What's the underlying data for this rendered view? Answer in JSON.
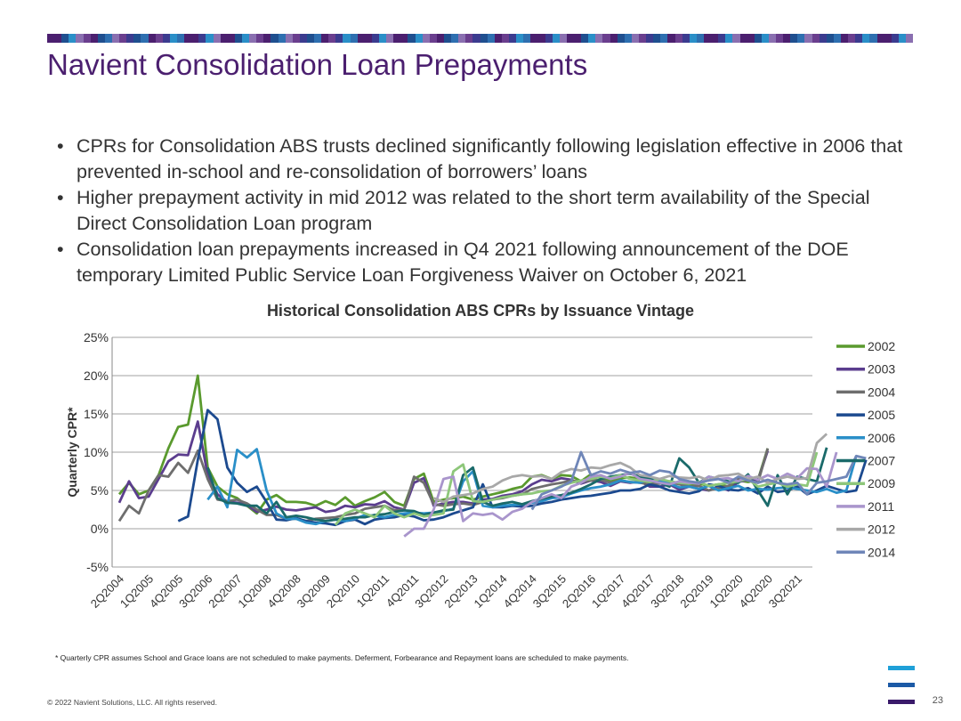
{
  "slide": {
    "title": "Navient Consolidation Loan Prepayments",
    "bullets": [
      "CPRs for Consolidation ABS trusts declined significantly following legislation effective in 2006 that prevented in-school and re-consolidation of borrowers’ loans",
      "Higher prepayment activity in mid 2012 was related to the short term availability of the Special Direct Consolidation Loan program",
      "Consolidation loan prepayments increased in Q4 2021 following announcement of the DOE temporary Limited Public Service Loan Forgiveness Waiver on October 6, 2021"
    ],
    "footnote": "* Quarterly CPR assumes School and Grace loans are not scheduled to make payments. Deferment, Forbearance and Repayment loans are scheduled to make payments.",
    "copyright": "© 2022 Navient Solutions, LLC. All rights reserved.",
    "page_number": "23",
    "top_bar_colors": [
      "#4b1f6f",
      "#3b3b8f",
      "#2e6fb0",
      "#6a3e8e",
      "#1f4f8f",
      "#8a6fb0",
      "#4b1f6f",
      "#2a8fc8"
    ],
    "logo_colors": [
      "#1fa0d8",
      "#1c5aa6",
      "#3a1a6a"
    ]
  },
  "chart_data": {
    "type": "line",
    "title": "Historical Consolidation ABS CPRs by Issuance Vintage",
    "xlabel": "",
    "ylabel": "Quarterly CPR*",
    "ylim": [
      -5,
      25
    ],
    "yticks": [
      -5,
      0,
      5,
      10,
      15,
      20,
      25
    ],
    "ytick_labels": [
      "-5%",
      "0%",
      "5%",
      "10%",
      "15%",
      "20%",
      "25%"
    ],
    "xtick_labels": [
      "2Q2004",
      "1Q2005",
      "4Q2005",
      "3Q2006",
      "2Q2007",
      "1Q2008",
      "4Q2008",
      "3Q2009",
      "2Q2010",
      "1Q2011",
      "4Q2011",
      "3Q2012",
      "2Q2013",
      "1Q2014",
      "4Q2014",
      "3Q2015",
      "2Q2016",
      "1Q2017",
      "4Q2017",
      "3Q2018",
      "2Q2019",
      "1Q2020",
      "4Q2020",
      "3Q2021"
    ],
    "grid": "horizontal",
    "legend": "right",
    "x_start": "2Q2004",
    "x_end": "4Q2021",
    "series": [
      {
        "name": "2002",
        "color": "#5a9a2e",
        "start": "2Q2004",
        "values": [
          4.5,
          6,
          4.5,
          5,
          7,
          10.5,
          13.3,
          13.6,
          20,
          8,
          5.5,
          4.5,
          4,
          3,
          2,
          3.8,
          4.4,
          3.5,
          3.5,
          3.4,
          3,
          3.6,
          3.1,
          4.1,
          3.0,
          3.6,
          4.1,
          4.8,
          3.5,
          3.0,
          6.5,
          7.2,
          3.5,
          3.8,
          4.0,
          4.2,
          3.8,
          4.2,
          4.5,
          4.8,
          5.2,
          5.5,
          6.8,
          7.0,
          6.5,
          7.0,
          6.9,
          6.2,
          7.1,
          6.6,
          6.3,
          6.6,
          6.7,
          6.5,
          6.1,
          6.0,
          6.2,
          5.9,
          5.7,
          5.9,
          5.6,
          5.8,
          5.5,
          6.3,
          6.1,
          6.4,
          10.5
        ]
      },
      {
        "name": "2003",
        "color": "#5b3d8e",
        "start": "2Q2004",
        "values": [
          3.4,
          6.2,
          4,
          4.2,
          6.5,
          8.8,
          9.7,
          9.6,
          14,
          7,
          4.5,
          3.5,
          3.4,
          3.1,
          2.2,
          2.5,
          2.9,
          2.5,
          2.4,
          2.6,
          2.8,
          2.2,
          2.4,
          3.0,
          2.8,
          3.2,
          3.1,
          3.6,
          2.8,
          2.5,
          6.0,
          6.6,
          3.0,
          3.3,
          3.5,
          3.5,
          3.3,
          3.8,
          3.9,
          4.3,
          4.5,
          4.9,
          5.8,
          6.4,
          6.2,
          6.6,
          6.4,
          5.9,
          6.3,
          6.1,
          5.6,
          6.2,
          6.0,
          6.2,
          5.5,
          5.5,
          5.8,
          5.1,
          5.5,
          5.2,
          5.0,
          5.5,
          5.0,
          6.1,
          6.4,
          6.3,
          10.2
        ]
      },
      {
        "name": "2004",
        "color": "#6e6e6e",
        "start": "2Q2004",
        "values": [
          1.0,
          3.0,
          2.0,
          5.0,
          7.0,
          6.8,
          8.6,
          7.3,
          10.2,
          6.5,
          3.8,
          3.6,
          3.8,
          3.3,
          2.5,
          1.8,
          1.8,
          1.3,
          1.3,
          1.0,
          1.3,
          1.4,
          1.5,
          1.8,
          2.0,
          2.6,
          2.8,
          3.0,
          2.4,
          2.5,
          6.8,
          6.0,
          3.2,
          3.0,
          3.2,
          3.3,
          3.1,
          3.5,
          3.8,
          4.0,
          4.3,
          4.5,
          5.2,
          5.5,
          5.8,
          6.0,
          6.3,
          6.1,
          6.3,
          6.4,
          6.0,
          6.3,
          6.1,
          6.0,
          5.8,
          5.9,
          6.1,
          5.8,
          5.5,
          5.6,
          5.0,
          5.3,
          5.6,
          6.5,
          6.3,
          6.0,
          10.5
        ]
      },
      {
        "name": "2005",
        "color": "#1c4a8f",
        "start": "4Q2005",
        "values": [
          1.0,
          1.6,
          9.0,
          15.5,
          14.3,
          8.0,
          6.0,
          4.8,
          5.5,
          3.5,
          1.2,
          1.1,
          1.4,
          1.0,
          0.8,
          0.7,
          0.5,
          1.0,
          1.2,
          0.6,
          1.2,
          1.4,
          1.5,
          1.8,
          1.6,
          1.1,
          1.2,
          1.5,
          2.0,
          2.4,
          2.8,
          5.8,
          2.8,
          2.8,
          3.0,
          2.9,
          3.0,
          3.3,
          3.5,
          3.8,
          4.0,
          4.2,
          4.3,
          4.5,
          4.7,
          5.0,
          5.0,
          5.2,
          5.8,
          5.5,
          5.0,
          4.8,
          4.6,
          4.9,
          5.8,
          5.6,
          5.1,
          5.0,
          5.3,
          4.6,
          5.5,
          4.8,
          5.0,
          5.5,
          4.5,
          5.0,
          5.6,
          5.2,
          4.8,
          5.0,
          9.0
        ]
      },
      {
        "name": "2006",
        "color": "#2a8fc8",
        "start": "3Q2006",
        "values": [
          3.8,
          5.5,
          2.8,
          10.3,
          9.3,
          10.4,
          5.0,
          2.0,
          1.3,
          1.3,
          0.8,
          0.6,
          1.0,
          1.2,
          1.0,
          1.3,
          1.8,
          1.7,
          1.5,
          1.8,
          2.0,
          2.1,
          2.0,
          2.1,
          2.3,
          2.6,
          6.2,
          7.5,
          3.0,
          2.8,
          3.0,
          3.1,
          3.2,
          3.4,
          3.6,
          4.0,
          4.1,
          4.6,
          5.0,
          5.3,
          5.5,
          5.8,
          6.3,
          6.1,
          6.0,
          6.5,
          6.2,
          5.9,
          5.4,
          5.5,
          5.2,
          5.6,
          5.0,
          5.3,
          5.6,
          5.0,
          5.2,
          5.1,
          5.3,
          5.4,
          5.2,
          5.0,
          4.8,
          5.2,
          4.7,
          5.0,
          9.5
        ]
      },
      {
        "name": "2007",
        "color": "#1a6a6a",
        "start": "3Q2006",
        "values": [
          8.0,
          4.0,
          3.4,
          3.3,
          3.0,
          3.0,
          2.0,
          3.5,
          1.5,
          1.7,
          1.5,
          1.2,
          1.0,
          1.2,
          1.3,
          1.5,
          1.5,
          1.8,
          1.9,
          2.2,
          2.4,
          2.3,
          1.8,
          2.1,
          2.4,
          2.5,
          7.0,
          8.0,
          3.5,
          3.0,
          3.3,
          3.5,
          3.2,
          3.6,
          3.9,
          4.2,
          4.4,
          4.7,
          5.2,
          5.8,
          6.5,
          6.8,
          7.0,
          7.2,
          6.8,
          6.5,
          6.0,
          5.5,
          9.2,
          8.0,
          6.0,
          6.8,
          6.5,
          6.2,
          6.0,
          7.1,
          5.0,
          3.0,
          7.0,
          4.5,
          6.8,
          6.5,
          6.2,
          10.6
        ]
      },
      {
        "name": "2009",
        "color": "#8ec77a",
        "start": "4Q2009",
        "values": [
          0.5,
          2.0,
          2.5,
          2.0,
          1.5,
          3.0,
          2.0,
          1.5,
          2.0,
          1.6,
          1.8,
          2.0,
          7.5,
          8.4,
          3.6,
          3.5,
          3.8,
          4.1,
          4.3,
          4.5,
          4.6,
          4.9,
          5.0,
          5.6,
          6.0,
          6.3,
          6.5,
          6.8,
          6.6,
          7.0,
          6.5,
          6.3,
          6.1,
          6.5,
          6.2,
          6.0,
          5.9,
          6.1,
          5.6,
          5.8,
          6.0,
          6.2,
          6.5,
          5.5,
          5.8,
          6.0,
          5.5,
          5.8,
          5.6,
          10.0
        ]
      },
      {
        "name": "2011",
        "color": "#a995cc",
        "start": "3Q2011",
        "values": [
          -1.0,
          0.0,
          0.0,
          2.5,
          6.5,
          6.8,
          1.0,
          2.0,
          1.8,
          2.0,
          1.2,
          2.2,
          2.6,
          3.5,
          4.0,
          4.5,
          4.0,
          5.5,
          6.0,
          6.8,
          7.0,
          6.5,
          6.8,
          7.3,
          6.5,
          6.3,
          6.0,
          5.8,
          6.2,
          6.0,
          5.9,
          6.8,
          6.5,
          6.6,
          6.2,
          6.9,
          6.4,
          7.0,
          6.5,
          7.2,
          6.6,
          7.9,
          7.8,
          5.5,
          10.0
        ]
      },
      {
        "name": "2012",
        "color": "#a8a8a8",
        "start": "2Q2012",
        "values": [
          4.0,
          3.5,
          4.2,
          4.4,
          4.6,
          5.2,
          5.5,
          6.3,
          6.8,
          7.0,
          6.8,
          6.9,
          6.5,
          7.4,
          7.8,
          7.6,
          8.0,
          7.9,
          8.3,
          8.6,
          8.0,
          7.0,
          6.8,
          6.5,
          6.9,
          6.7,
          6.6,
          6.8,
          6.3,
          6.9,
          7.0,
          7.2,
          6.5,
          6.8,
          6.0,
          6.5,
          6.8,
          6.5,
          6.6,
          11.2,
          12.4
        ]
      },
      {
        "name": "2014",
        "color": "#6f86b8",
        "start": "4Q2014",
        "values": [
          2.5,
          4.5,
          5.0,
          5.5,
          6.2,
          10.0,
          7.0,
          7.5,
          7.2,
          7.7,
          7.3,
          7.5,
          7.0,
          7.6,
          7.4,
          6.5,
          6.2,
          6.0,
          6.3,
          6.5,
          6.0,
          6.8,
          6.3,
          6.0,
          6.4,
          6.0,
          5.8,
          6.0,
          4.5,
          6.0,
          6.2,
          6.5,
          6.8,
          9.5,
          9.2
        ]
      }
    ]
  }
}
